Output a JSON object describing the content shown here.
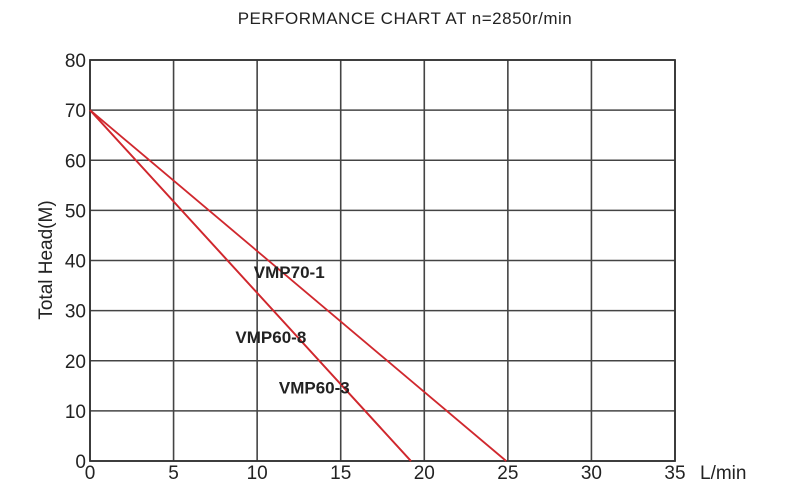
{
  "chart_data": {
    "type": "line",
    "title": "PERFORMANCE CHART AT n=2850r/min",
    "xlabel": "L/min",
    "ylabel": "Total Head(M)",
    "xlim": [
      0,
      35
    ],
    "ylim": [
      0,
      80
    ],
    "xticks": [
      0,
      5,
      10,
      15,
      20,
      25,
      30,
      35
    ],
    "yticks": [
      0,
      10,
      20,
      30,
      40,
      50,
      60,
      70,
      80
    ],
    "grid": true,
    "line_color": "#d0282e",
    "series": [
      {
        "name": "VMP70-1",
        "x": [
          0,
          24.9
        ],
        "y": [
          70,
          0
        ]
      },
      {
        "name": "VMP60-8",
        "x": [
          0,
          19.2
        ],
        "y": [
          70,
          0
        ]
      },
      {
        "name": "VMP60-3",
        "x": [
          0,
          19.2
        ],
        "y": [
          70,
          0
        ]
      }
    ],
    "annotations": [
      {
        "text": "VMP70-1",
        "x": 9.8,
        "y": 36.5
      },
      {
        "text": "VMP60-8",
        "x": 8.7,
        "y": 23.5
      },
      {
        "text": "VMP60-3",
        "x": 11.3,
        "y": 13.5
      }
    ]
  }
}
